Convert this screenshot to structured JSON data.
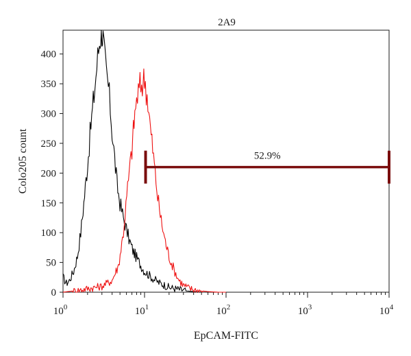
{
  "chart_data": {
    "type": "histogram",
    "title": "2A9",
    "xlabel": "EpCAM-FITC",
    "ylabel": "Colo205 count",
    "x_scale": "log",
    "xlim": [
      1,
      10000
    ],
    "ylim": [
      0,
      440
    ],
    "x_ticks": [
      {
        "value": 1,
        "base": "10",
        "exp": "0"
      },
      {
        "value": 10,
        "base": "10",
        "exp": "1"
      },
      {
        "value": 100,
        "base": "10",
        "exp": "2"
      },
      {
        "value": 1000,
        "base": "10",
        "exp": "3"
      },
      {
        "value": 10000,
        "base": "10",
        "exp": "4"
      }
    ],
    "y_ticks": [
      0,
      50,
      100,
      150,
      200,
      250,
      300,
      350,
      400
    ],
    "gate": {
      "start": 10.3,
      "end": 10000,
      "level": 210,
      "label": "52.9%",
      "color": "#7a0d0d"
    },
    "series": [
      {
        "color": "#000000",
        "x": [
          1.0,
          1.1,
          1.2,
          1.35,
          1.5,
          1.65,
          1.8,
          2.0,
          2.2,
          2.4,
          2.6,
          2.8,
          2.9,
          3.0,
          3.1,
          3.2,
          3.4,
          3.6,
          3.8,
          4.0,
          4.3,
          4.6,
          5.0,
          5.5,
          6.0,
          6.6,
          7.2,
          8.0,
          9.0,
          10.0,
          11.5,
          13.0,
          15.0,
          17.5,
          20.0,
          24.0,
          28.0,
          33.0,
          40.0,
          50.0
        ],
        "y": [
          25,
          15,
          20,
          35,
          60,
          100,
          150,
          215,
          280,
          330,
          380,
          420,
          435,
          440,
          425,
          400,
          370,
          345,
          310,
          270,
          225,
          180,
          150,
          125,
          105,
          85,
          70,
          58,
          45,
          35,
          28,
          22,
          16,
          12,
          8,
          6,
          4,
          2,
          1,
          0
        ]
      },
      {
        "color": "#ee1111",
        "x": [
          1.0,
          1.5,
          2.0,
          3.0,
          4.0,
          4.8,
          5.5,
          6.2,
          7.0,
          7.6,
          8.2,
          8.8,
          9.4,
          10.0,
          10.5,
          11.0,
          11.8,
          12.6,
          13.5,
          14.5,
          16.0,
          18.0,
          20.0,
          23.0,
          26.0,
          30.0,
          36.0,
          45.0,
          60.0,
          80.0,
          100.0
        ],
        "y": [
          0,
          3,
          6,
          10,
          20,
          45,
          100,
          175,
          240,
          300,
          330,
          345,
          350,
          360,
          340,
          320,
          275,
          240,
          200,
          160,
          120,
          85,
          60,
          38,
          22,
          12,
          6,
          3,
          1,
          0,
          0
        ]
      }
    ]
  }
}
